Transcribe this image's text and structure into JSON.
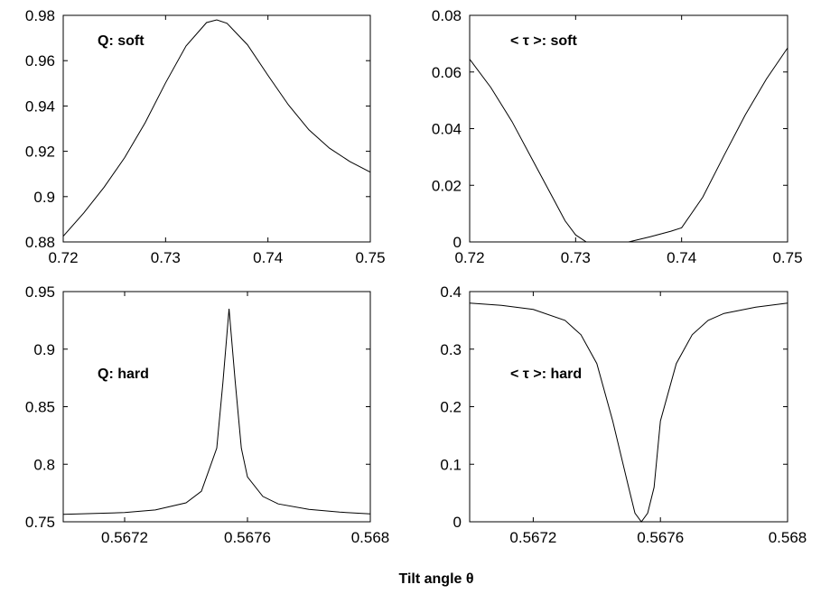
{
  "chart_data": [
    {
      "type": "line",
      "annotation": "Q: soft",
      "xlim": [
        0.72,
        0.75
      ],
      "ylim": [
        0.88,
        0.98
      ],
      "xticks": [
        "0.72",
        "0.73",
        "0.74",
        "0.75"
      ],
      "yticks": [
        "0.88",
        "0.9",
        "0.92",
        "0.94",
        "0.96",
        "0.98"
      ],
      "grid": false,
      "series": [
        {
          "x": [
            0.72,
            0.722,
            0.724,
            0.726,
            0.728,
            0.73,
            0.732,
            0.734,
            0.735,
            0.736,
            0.738,
            0.74,
            0.742,
            0.744,
            0.746,
            0.748,
            0.75
          ],
          "y": [
            0.8825,
            0.8928,
            0.9042,
            0.9172,
            0.9326,
            0.9502,
            0.9665,
            0.9768,
            0.978,
            0.9765,
            0.967,
            0.9535,
            0.9405,
            0.9295,
            0.9214,
            0.9155,
            0.9108
          ]
        }
      ]
    },
    {
      "type": "line",
      "annotation": "< τ >: soft",
      "xlim": [
        0.72,
        0.75
      ],
      "ylim": [
        0,
        0.08
      ],
      "xticks": [
        "0.72",
        "0.73",
        "0.74",
        "0.75"
      ],
      "yticks": [
        "0",
        "0.02",
        "0.04",
        "0.06",
        "0.08"
      ],
      "grid": false,
      "series": [
        {
          "x": [
            0.72,
            0.722,
            0.724,
            0.726,
            0.728,
            0.729,
            0.73,
            0.731,
            0.733,
            0.735,
            0.737,
            0.739,
            0.74,
            0.742,
            0.744,
            0.746,
            0.748,
            0.75
          ],
          "y": [
            0.0645,
            0.0545,
            0.0425,
            0.0285,
            0.0145,
            0.0075,
            0.0025,
            0.0,
            0.0,
            0.0,
            0.0018,
            0.0038,
            0.005,
            0.0158,
            0.0305,
            0.0448,
            0.0575,
            0.0685
          ]
        }
      ]
    },
    {
      "type": "line",
      "annotation": "Q: hard",
      "xlim": [
        0.567,
        0.568
      ],
      "ylim": [
        0.75,
        0.95
      ],
      "xticks": [
        "0.5672",
        "0.5676",
        "0.568"
      ],
      "yticks": [
        "0.75",
        "0.8",
        "0.85",
        "0.9",
        "0.95"
      ],
      "grid": false,
      "series": [
        {
          "x": [
            0.567,
            0.5672,
            0.5673,
            0.5674,
            0.56745,
            0.5675,
            0.56752,
            0.56754,
            0.56756,
            0.56758,
            0.5676,
            0.56765,
            0.5677,
            0.5678,
            0.5679,
            0.568
          ],
          "y": [
            0.7565,
            0.758,
            0.7603,
            0.7665,
            0.7765,
            0.814,
            0.871,
            0.935,
            0.872,
            0.814,
            0.789,
            0.772,
            0.7655,
            0.7608,
            0.7584,
            0.7568
          ]
        }
      ]
    },
    {
      "type": "line",
      "annotation": "< τ >: hard",
      "xlim": [
        0.567,
        0.568
      ],
      "ylim": [
        0,
        0.4
      ],
      "xticks": [
        "0.5672",
        "0.5676",
        "0.568"
      ],
      "yticks": [
        "0",
        "0.1",
        "0.2",
        "0.3",
        "0.4"
      ],
      "grid": false,
      "series": [
        {
          "x": [
            0.567,
            0.5671,
            0.5672,
            0.5673,
            0.56735,
            0.5674,
            0.56745,
            0.5675,
            0.56752,
            0.56754,
            0.56756,
            0.56758,
            0.5676,
            0.56765,
            0.5677,
            0.56775,
            0.5678,
            0.5679,
            0.568
          ],
          "y": [
            0.38,
            0.376,
            0.369,
            0.35,
            0.325,
            0.275,
            0.175,
            0.06,
            0.015,
            0.0,
            0.015,
            0.06,
            0.175,
            0.275,
            0.325,
            0.35,
            0.362,
            0.373,
            0.38
          ]
        }
      ]
    }
  ],
  "xlabel": "Tilt angle θ"
}
